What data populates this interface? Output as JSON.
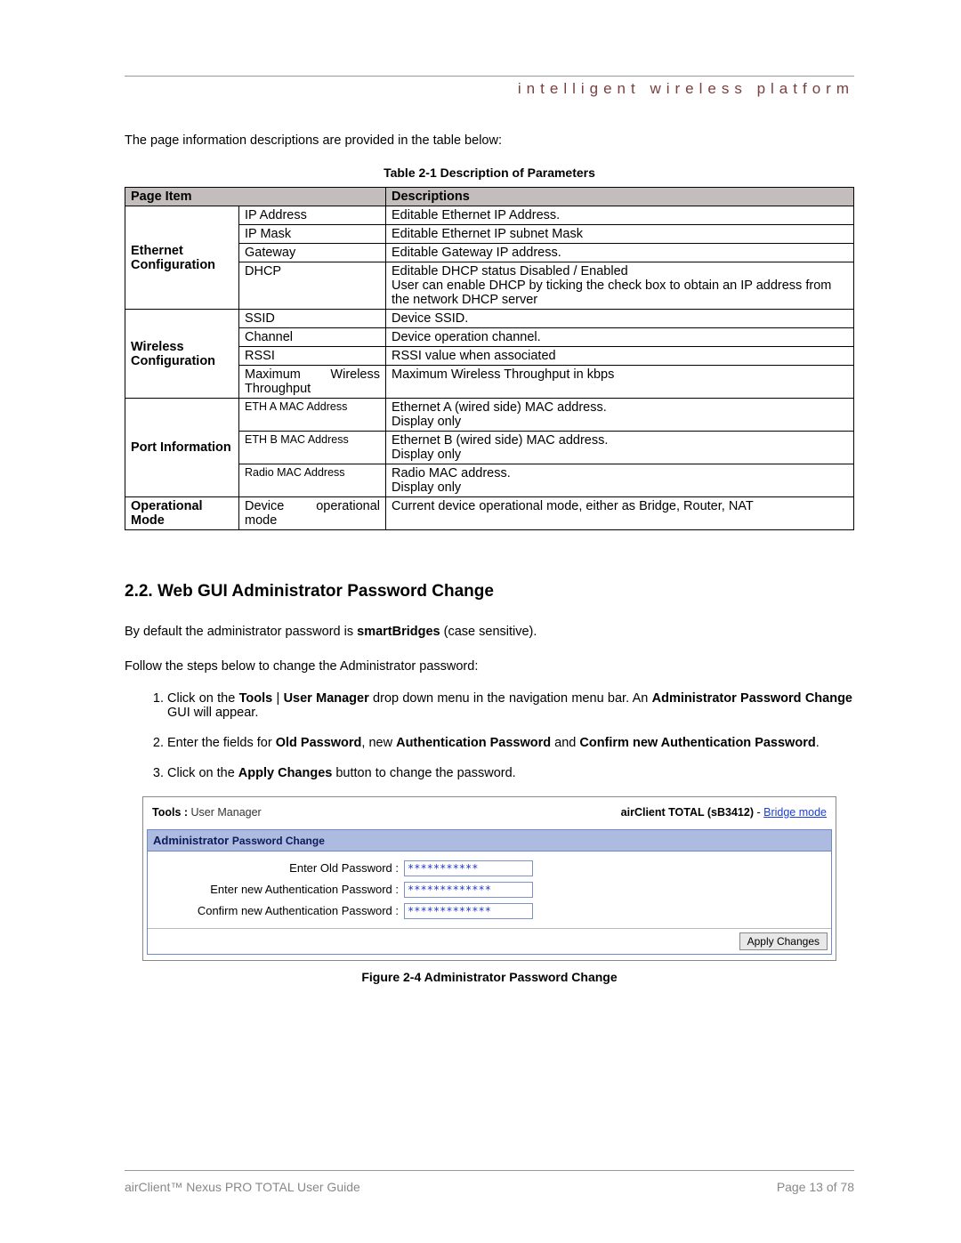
{
  "header": {
    "tagline": "intelligent  wireless  platform"
  },
  "intro": "The page information descriptions are provided in the table below:",
  "table_caption": "Table 2-1 Description of Parameters",
  "table": {
    "headers": {
      "page_item": "Page Item",
      "descriptions": "Descriptions"
    },
    "groups": [
      {
        "label": "Ethernet Configuration",
        "rows": [
          {
            "item": "IP Address",
            "desc": "Editable Ethernet IP Address."
          },
          {
            "item": "IP Mask",
            "desc": "Editable Ethernet IP subnet Mask"
          },
          {
            "item": "Gateway",
            "desc": "Editable Gateway IP address."
          },
          {
            "item": "DHCP",
            "desc": "Editable DHCP status Disabled / Enabled\nUser can enable DHCP by ticking the check box to obtain an IP address from the network DHCP server"
          }
        ]
      },
      {
        "label": "Wireless Configuration",
        "rows": [
          {
            "item": "SSID",
            "desc": "Device SSID."
          },
          {
            "item": "Channel",
            "desc": "Device operation channel."
          },
          {
            "item": "RSSI",
            "desc": "RSSI value when associated"
          },
          {
            "item": "Maximum Wireless Throughput",
            "desc": "Maximum Wireless Throughput in kbps"
          }
        ]
      },
      {
        "label": "Port Information",
        "rows": [
          {
            "item": "ETH A MAC Address",
            "desc": "Ethernet A (wired side) MAC address.\nDisplay only"
          },
          {
            "item": "ETH B MAC Address",
            "desc": "Ethernet B (wired side) MAC address.\nDisplay only"
          },
          {
            "item": "Radio MAC Address",
            "desc": "Radio MAC address.\nDisplay only"
          }
        ]
      },
      {
        "label": "Operational Mode",
        "rows": [
          {
            "item": "Device operational mode",
            "desc": "Current device operational mode, either as Bridge, Router, NAT"
          }
        ]
      }
    ]
  },
  "section": {
    "heading": "2.2.  Web GUI Administrator Password Change",
    "p1a": "By default the administrator password is ",
    "p1b": "smartBridges",
    "p1c": " (case sensitive).",
    "p2": "Follow the steps below to change the Administrator password:",
    "steps": {
      "s1a": "Click on the ",
      "s1b": "Tools",
      "s1c": " | ",
      "s1d": "User Manager",
      "s1e": " drop down menu in the navigation menu bar. An ",
      "s1f": "Administrator Password Change",
      "s1g": " GUI will appear.",
      "s2a": "Enter the fields for ",
      "s2b": "Old Password",
      "s2c": ", new ",
      "s2d": "Authentication Password",
      "s2e": " and ",
      "s2f": "Confirm new Authentication Password",
      "s2g": ".",
      "s3a": "Click on the ",
      "s3b": "Apply Changes",
      "s3c": " button to change the password."
    }
  },
  "gui": {
    "top_left_b": "Tools : ",
    "top_left": "User Manager",
    "top_right_b": "airClient TOTAL (sB3412) ",
    "top_right_sep": "- ",
    "top_right_link": "Bridge mode",
    "panel_head_a": "Administrator ",
    "panel_head_b": "Password Change",
    "rows": [
      {
        "label": "Enter Old Password :",
        "value": "***********"
      },
      {
        "label": "Enter new Authentication Password :",
        "value": "*************"
      },
      {
        "label": "Confirm new Authentication Password :",
        "value": "*************"
      }
    ],
    "button": "Apply Changes"
  },
  "fig_caption": "Figure 2-4 Administrator Password Change",
  "footer": {
    "left": "airClient™ Nexus PRO TOTAL User Guide",
    "right": "Page 13 of 78"
  }
}
